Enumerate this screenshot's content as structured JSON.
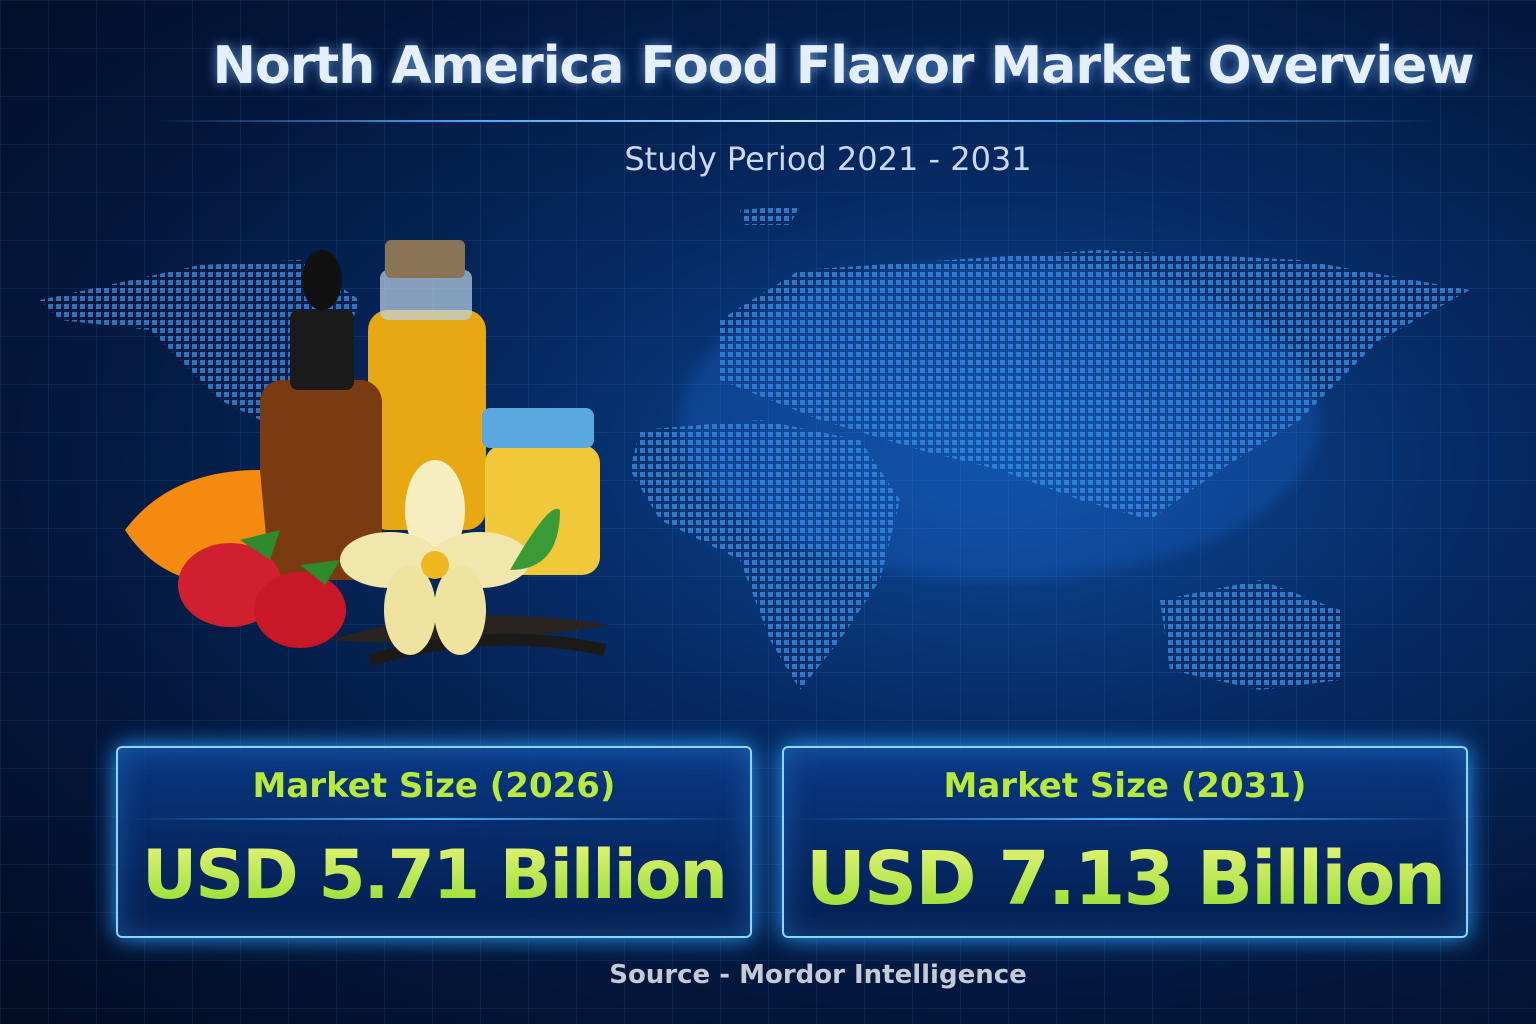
{
  "header": {
    "title": "North America Food Flavor Market Overview",
    "subtitle": "Study Period 2021 - 2031"
  },
  "cards": [
    {
      "label": "Market Size (2026)",
      "value": "USD 5.71 Billion"
    },
    {
      "label": "Market Size (2031)",
      "value": "USD 7.13 Billion"
    }
  ],
  "footer": {
    "source": "Source - Mordor Intelligence"
  },
  "colors": {
    "accent": "#b8ea3c",
    "glow": "#2a9cff",
    "background": "#03163a"
  },
  "illustration": {
    "icons": [
      "world-map",
      "dropper-bottle",
      "oil-bottle",
      "honey-jar",
      "orange-slice",
      "strawberry",
      "vanilla-flower",
      "vanilla-pods"
    ]
  }
}
